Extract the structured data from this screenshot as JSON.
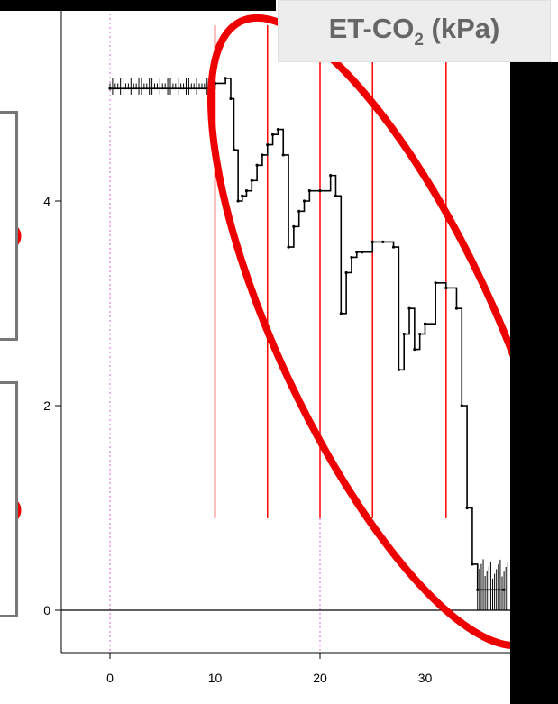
{
  "chart_data": {
    "type": "line",
    "title": "ET-CO",
    "title_subscript": "2",
    "title_unit": " (kPa)",
    "xlabel": "",
    "ylabel": "",
    "xlim": [
      -5,
      38
    ],
    "ylim": [
      -0.4,
      5.75
    ],
    "x_ticks": [
      0,
      10,
      20,
      30
    ],
    "y_ticks": [
      0,
      2,
      4
    ],
    "baseline_y": 0,
    "dotted_guides_x": [
      0,
      10,
      20,
      30
    ],
    "event_markers": [
      {
        "x": 10,
        "y_top": 5.75,
        "y_bottom": 0.9
      },
      {
        "x": 15,
        "y_top": 5.75,
        "y_bottom": 0.9
      },
      {
        "x": 20,
        "y_top": 5.75,
        "y_bottom": 0.9
      },
      {
        "x": 25,
        "y_top": 5.75,
        "y_bottom": 0.9
      },
      {
        "x": 32,
        "y_top": 5.75,
        "y_bottom": 0.9
      }
    ],
    "series": [
      {
        "x": [
          0,
          10,
          11,
          11.5,
          11.8,
          12.2,
          12.6,
          13,
          13.5,
          14,
          14.5,
          15,
          15.5,
          16,
          16.5,
          17,
          17.5,
          18,
          18.5,
          19,
          20,
          21,
          21.5,
          22,
          22.5,
          23,
          23.5,
          24,
          25,
          26,
          27,
          27.5,
          28,
          28.5,
          29,
          29.5,
          30,
          31,
          32,
          33,
          33.5,
          34,
          34.5,
          35,
          37.5
        ],
        "y": [
          5.1,
          5.15,
          5.2,
          5.0,
          4.5,
          4.0,
          4.05,
          4.1,
          4.2,
          4.35,
          4.45,
          4.55,
          4.65,
          4.7,
          4.45,
          3.55,
          3.75,
          3.9,
          4.0,
          4.1,
          4.1,
          4.25,
          4.05,
          2.9,
          3.3,
          3.45,
          3.5,
          3.5,
          3.6,
          3.6,
          3.55,
          2.35,
          2.7,
          2.95,
          2.55,
          2.7,
          2.8,
          3.2,
          3.15,
          2.95,
          2.0,
          1.0,
          0.45,
          0.2,
          0.2
        ]
      }
    ],
    "colors": {
      "series": "#000000",
      "event_markers": "#ff0000",
      "dotted_guides": "#e060e0",
      "highlight_ellipse": "#ee0000",
      "title_text": "#666666",
      "title_box": "#ededed"
    }
  }
}
